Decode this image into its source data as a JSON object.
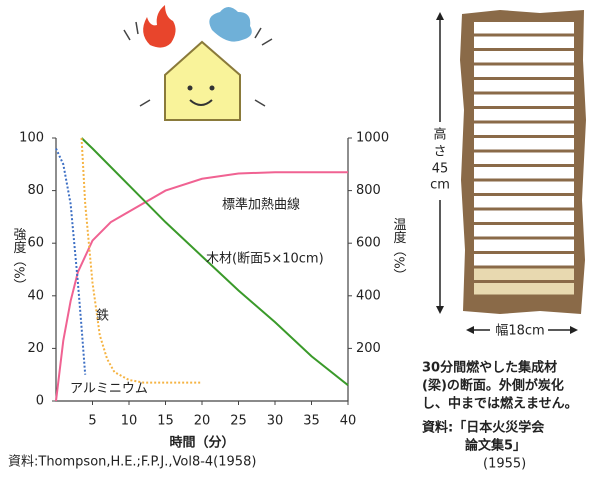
{
  "chart_data": {
    "type": "line",
    "xlabel": "時間（分）",
    "ylabel": "強度（%）",
    "y2label": "温度（%）",
    "xlim": [
      0,
      40
    ],
    "xticks": [
      5,
      10,
      15,
      20,
      25,
      30,
      35,
      40
    ],
    "ylim": [
      0,
      100
    ],
    "yticks": [
      0,
      20,
      40,
      60,
      80,
      100
    ],
    "y2lim": [
      0,
      1000
    ],
    "y2ticks": [
      200,
      400,
      600,
      800,
      1000
    ],
    "grid": false,
    "series": [
      {
        "name": "標準加熱曲線",
        "color": "#f06292",
        "axis": "y2",
        "dashed": false,
        "x": [
          0,
          1,
          2,
          3,
          5,
          7.5,
          10,
          15,
          20,
          25,
          30,
          40
        ],
        "values": [
          0,
          230,
          380,
          490,
          610,
          680,
          720,
          800,
          845,
          865,
          870,
          870
        ]
      },
      {
        "name": "木材(断面5×10cm)",
        "color": "#3a9a2a",
        "dashed": false,
        "x": [
          3.5,
          5,
          10,
          15,
          20,
          25,
          30,
          35,
          40
        ],
        "values": [
          100,
          96,
          82,
          68,
          55,
          42,
          30,
          17,
          6
        ]
      },
      {
        "name": "鉄",
        "color": "#f5b342",
        "dashed": true,
        "x": [
          3.5,
          4,
          5,
          6,
          7,
          8,
          10,
          12,
          15,
          20
        ],
        "values": [
          100,
          75,
          45,
          25,
          16,
          11,
          8,
          7,
          7,
          7
        ]
      },
      {
        "name": "アルミニウム",
        "color": "#3d6fc4",
        "dashed": true,
        "x": [
          0,
          1,
          2,
          3,
          3.5,
          4
        ],
        "values": [
          96,
          90,
          75,
          45,
          28,
          10
        ]
      }
    ],
    "source": "資料:Thompson,H.E.;F.P.J.,Vol8-4(1958)"
  },
  "figure": {
    "height_label": [
      "高",
      "さ",
      "45",
      "cm"
    ],
    "width_label": "幅18cm",
    "caption": [
      "30分間燃やした集成材",
      "(梁)の断面。外側が炭化",
      "し、中までは燃えません。"
    ],
    "source": [
      "資料:「日本火災学会",
      "論文集5」",
      "(1955)"
    ]
  }
}
